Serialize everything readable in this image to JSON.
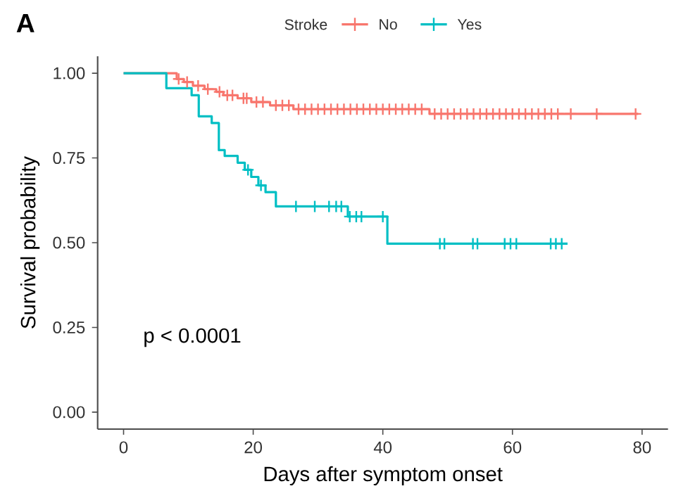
{
  "chart_data": {
    "type": "step",
    "title": "A",
    "xlabel": "Days after symptom onset",
    "ylabel": "Survival probability",
    "legend_title": "Stroke",
    "legend": "top",
    "grid": false,
    "xlim": [
      -4,
      84
    ],
    "ylim": [
      -0.05,
      1.05
    ],
    "xticks": [
      0,
      20,
      40,
      60,
      80
    ],
    "yticks": [
      {
        "value": 0,
        "label": "0.00"
      },
      {
        "value": 0.25,
        "label": "0.25"
      },
      {
        "value": 0.5,
        "label": "0.50"
      },
      {
        "value": 0.75,
        "label": "0.75"
      },
      {
        "value": 1,
        "label": "1.00"
      }
    ],
    "annotations": [
      "p < 0.0001"
    ],
    "series": [
      {
        "name": "No",
        "color": "#f8766d",
        "marker": "none",
        "x": [
          0,
          8.2,
          9.3,
          10.7,
          12.5,
          14.3,
          15.4,
          17.6,
          19.7,
          22.6,
          26.2,
          47.2,
          79.4
        ],
        "values": [
          1,
          0.983,
          0.974,
          0.963,
          0.953,
          0.945,
          0.935,
          0.926,
          0.915,
          0.905,
          0.894,
          0.88,
          0.88
        ]
      },
      {
        "name": "Yes",
        "color": "#00bfc4",
        "marker": "none",
        "x": [
          0,
          6.6,
          10.5,
          11.6,
          13.6,
          14.7,
          15.6,
          17.6,
          18.7,
          19.7,
          20.8,
          21.9,
          23.5,
          34.6,
          40.7,
          68.5
        ],
        "values": [
          1,
          0.956,
          0.935,
          0.873,
          0.853,
          0.773,
          0.756,
          0.736,
          0.715,
          0.694,
          0.669,
          0.649,
          0.607,
          0.577,
          0.497,
          0.497
        ]
      },
      {
        "type": "scatter",
        "color": "#f8766d",
        "marker": "cross",
        "x": [
          8.5,
          9.8,
          11.5,
          13,
          14.8,
          16,
          16.8,
          18.5,
          19,
          20.5,
          21.5,
          23.5,
          24.5,
          25.5,
          27,
          28,
          29,
          30,
          31,
          32,
          33,
          34,
          35,
          36,
          37,
          38,
          39,
          40,
          41,
          42,
          43,
          44,
          45,
          46,
          48,
          49,
          50,
          51,
          52,
          53,
          54,
          55,
          56,
          57,
          58,
          59,
          60,
          61,
          62,
          63,
          64,
          65,
          66,
          67,
          69,
          73,
          79
        ],
        "values": [
          0.983,
          0.974,
          0.963,
          0.953,
          0.945,
          0.935,
          0.935,
          0.926,
          0.926,
          0.915,
          0.915,
          0.905,
          0.905,
          0.905,
          0.894,
          0.894,
          0.894,
          0.894,
          0.894,
          0.894,
          0.894,
          0.894,
          0.894,
          0.894,
          0.894,
          0.894,
          0.894,
          0.894,
          0.894,
          0.894,
          0.894,
          0.894,
          0.894,
          0.894,
          0.88,
          0.88,
          0.88,
          0.88,
          0.88,
          0.88,
          0.88,
          0.88,
          0.88,
          0.88,
          0.88,
          0.88,
          0.88,
          0.88,
          0.88,
          0.88,
          0.88,
          0.88,
          0.88,
          0.88,
          0.88,
          0.88,
          0.88
        ]
      },
      {
        "type": "scatter",
        "color": "#00bfc4",
        "marker": "cross",
        "x": [
          19.2,
          21.2,
          26.6,
          29.5,
          31.7,
          32.8,
          33.6,
          34.9,
          35.9,
          36.7,
          40,
          48.8,
          49.5,
          53.9,
          54.6,
          58.8,
          59.7,
          60.6,
          65.9,
          66.7,
          67.6
        ],
        "values": [
          0.715,
          0.669,
          0.607,
          0.607,
          0.607,
          0.607,
          0.607,
          0.577,
          0.577,
          0.577,
          0.577,
          0.497,
          0.497,
          0.497,
          0.497,
          0.497,
          0.497,
          0.497,
          0.497,
          0.497,
          0.497
        ]
      }
    ]
  }
}
